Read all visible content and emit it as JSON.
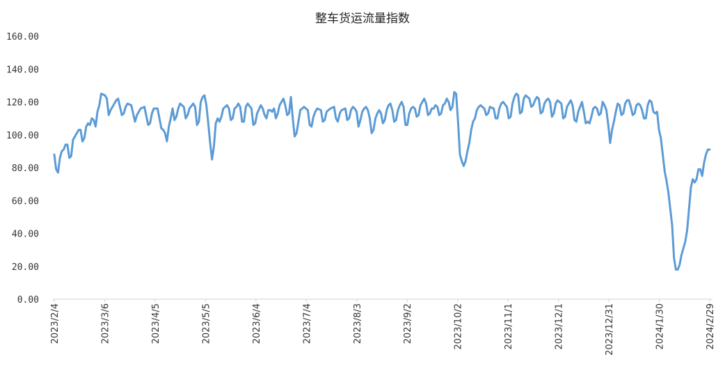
{
  "chart_data": {
    "type": "line",
    "title": "整车货运流量指数",
    "xlabel": "",
    "ylabel": "",
    "ylim": [
      0,
      160
    ],
    "yticks": [
      "0.00",
      "20.00",
      "40.00",
      "60.00",
      "80.00",
      "100.00",
      "120.00",
      "140.00",
      "160.00"
    ],
    "xticks": [
      "2023/2/4",
      "2023/3/6",
      "2023/4/5",
      "2023/5/5",
      "2023/6/4",
      "2023/7/4",
      "2023/8/3",
      "2023/9/2",
      "2023/10/2",
      "2023/11/1",
      "2023/12/1",
      "2023/12/31",
      "2024/1/30",
      "2024/2/29"
    ],
    "grid": false,
    "legend": "none",
    "series_color": "#5b9bd5",
    "series": [
      {
        "anchors": [
          [
            0,
            88
          ],
          [
            1,
            79
          ],
          [
            2,
            77
          ],
          [
            3,
            86
          ],
          [
            4,
            90
          ],
          [
            5,
            91
          ],
          [
            6,
            94
          ],
          [
            7,
            94
          ],
          [
            8,
            86
          ],
          [
            9,
            87
          ],
          [
            10,
            97
          ],
          [
            12,
            101
          ],
          [
            13,
            103
          ],
          [
            14,
            103
          ],
          [
            15,
            96
          ],
          [
            16,
            98
          ],
          [
            17,
            105
          ],
          [
            18,
            107
          ],
          [
            19,
            106
          ],
          [
            20,
            110
          ],
          [
            21,
            109
          ],
          [
            22,
            105
          ],
          [
            23,
            114
          ],
          [
            24,
            118
          ],
          [
            25,
            125
          ],
          [
            27,
            124
          ],
          [
            28,
            122
          ],
          [
            29,
            112
          ],
          [
            30,
            115
          ],
          [
            31,
            117
          ],
          [
            33,
            121
          ],
          [
            34,
            122
          ],
          [
            36,
            112
          ],
          [
            37,
            113
          ],
          [
            38,
            117
          ],
          [
            39,
            119
          ],
          [
            41,
            118
          ],
          [
            43,
            108
          ],
          [
            44,
            112
          ],
          [
            45,
            114
          ],
          [
            46,
            116
          ],
          [
            48,
            117
          ],
          [
            50,
            106
          ],
          [
            51,
            107
          ],
          [
            52,
            113
          ],
          [
            53,
            116
          ],
          [
            55,
            116
          ],
          [
            57,
            104
          ],
          [
            58,
            103
          ],
          [
            59,
            101
          ],
          [
            60,
            96
          ],
          [
            61,
            105
          ],
          [
            62,
            110
          ],
          [
            63,
            116
          ],
          [
            64,
            109
          ],
          [
            65,
            111
          ],
          [
            66,
            116
          ],
          [
            67,
            119
          ],
          [
            69,
            117
          ],
          [
            70,
            110
          ],
          [
            71,
            112
          ],
          [
            72,
            116
          ],
          [
            74,
            119
          ],
          [
            75,
            117
          ],
          [
            76,
            106
          ],
          [
            77,
            108
          ],
          [
            78,
            120
          ],
          [
            79,
            123
          ],
          [
            80,
            124
          ],
          [
            81,
            118
          ],
          [
            82,
            107
          ],
          [
            83,
            95
          ],
          [
            84,
            85
          ],
          [
            85,
            93
          ],
          [
            86,
            107
          ],
          [
            87,
            110
          ],
          [
            88,
            108
          ],
          [
            89,
            111
          ],
          [
            90,
            116
          ],
          [
            91,
            117
          ],
          [
            92,
            118
          ],
          [
            93,
            116
          ],
          [
            94,
            109
          ],
          [
            95,
            110
          ],
          [
            96,
            116
          ],
          [
            97,
            117
          ],
          [
            98,
            119
          ],
          [
            99,
            117
          ],
          [
            100,
            108
          ],
          [
            101,
            108
          ],
          [
            102,
            117
          ],
          [
            103,
            119
          ],
          [
            105,
            116
          ],
          [
            106,
            106
          ],
          [
            107,
            107
          ],
          [
            108,
            113
          ],
          [
            110,
            118
          ],
          [
            111,
            116
          ],
          [
            112,
            112
          ],
          [
            113,
            110
          ],
          [
            114,
            115
          ],
          [
            115,
            115
          ],
          [
            116,
            114
          ],
          [
            117,
            116
          ],
          [
            118,
            110
          ],
          [
            119,
            113
          ],
          [
            120,
            118
          ],
          [
            122,
            122
          ],
          [
            123,
            118
          ],
          [
            124,
            112
          ],
          [
            125,
            113
          ],
          [
            126,
            123
          ],
          [
            127,
            110
          ],
          [
            128,
            99
          ],
          [
            129,
            101
          ],
          [
            130,
            108
          ],
          [
            131,
            115
          ],
          [
            132,
            116
          ],
          [
            133,
            117
          ],
          [
            135,
            115
          ],
          [
            136,
            106
          ],
          [
            137,
            105
          ],
          [
            138,
            111
          ],
          [
            139,
            114
          ],
          [
            140,
            116
          ],
          [
            142,
            115
          ],
          [
            143,
            108
          ],
          [
            144,
            109
          ],
          [
            145,
            114
          ],
          [
            146,
            115
          ],
          [
            147,
            116
          ],
          [
            149,
            117
          ],
          [
            150,
            110
          ],
          [
            151,
            108
          ],
          [
            152,
            113
          ],
          [
            153,
            115
          ],
          [
            155,
            116
          ],
          [
            156,
            109
          ],
          [
            157,
            110
          ],
          [
            158,
            115
          ],
          [
            159,
            117
          ],
          [
            160,
            116
          ],
          [
            161,
            114
          ],
          [
            162,
            105
          ],
          [
            163,
            109
          ],
          [
            164,
            114
          ],
          [
            165,
            116
          ],
          [
            166,
            117
          ],
          [
            167,
            115
          ],
          [
            168,
            110
          ],
          [
            169,
            101
          ],
          [
            170,
            103
          ],
          [
            171,
            110
          ],
          [
            172,
            113
          ],
          [
            173,
            115
          ],
          [
            174,
            113
          ],
          [
            175,
            107
          ],
          [
            176,
            109
          ],
          [
            177,
            115
          ],
          [
            178,
            118
          ],
          [
            179,
            119
          ],
          [
            180,
            115
          ],
          [
            181,
            108
          ],
          [
            182,
            109
          ],
          [
            183,
            115
          ],
          [
            184,
            118
          ],
          [
            185,
            120
          ],
          [
            186,
            117
          ],
          [
            187,
            106
          ],
          [
            188,
            106
          ],
          [
            189,
            113
          ],
          [
            190,
            116
          ],
          [
            191,
            117
          ],
          [
            192,
            116
          ],
          [
            193,
            111
          ],
          [
            194,
            112
          ],
          [
            195,
            118
          ],
          [
            196,
            120
          ],
          [
            197,
            122
          ],
          [
            198,
            119
          ],
          [
            199,
            112
          ],
          [
            200,
            113
          ],
          [
            201,
            116
          ],
          [
            202,
            116
          ],
          [
            203,
            118
          ],
          [
            204,
            117
          ],
          [
            205,
            112
          ],
          [
            206,
            113
          ],
          [
            207,
            118
          ],
          [
            208,
            119
          ],
          [
            209,
            122
          ],
          [
            210,
            120
          ],
          [
            211,
            115
          ],
          [
            212,
            117
          ],
          [
            213,
            126
          ],
          [
            214,
            125
          ],
          [
            215,
            108
          ],
          [
            216,
            88
          ],
          [
            217,
            84
          ],
          [
            218,
            81
          ],
          [
            219,
            84
          ],
          [
            220,
            90
          ],
          [
            221,
            95
          ],
          [
            222,
            103
          ],
          [
            223,
            108
          ],
          [
            224,
            110
          ],
          [
            225,
            115
          ],
          [
            226,
            117
          ],
          [
            227,
            118
          ],
          [
            229,
            116
          ],
          [
            230,
            112
          ],
          [
            231,
            113
          ],
          [
            232,
            117
          ],
          [
            234,
            116
          ],
          [
            235,
            110
          ],
          [
            236,
            110
          ],
          [
            237,
            116
          ],
          [
            238,
            119
          ],
          [
            239,
            120
          ],
          [
            241,
            117
          ],
          [
            242,
            110
          ],
          [
            243,
            111
          ],
          [
            244,
            119
          ],
          [
            245,
            123
          ],
          [
            246,
            125
          ],
          [
            247,
            124
          ],
          [
            248,
            113
          ],
          [
            249,
            114
          ],
          [
            250,
            122
          ],
          [
            251,
            124
          ],
          [
            253,
            122
          ],
          [
            254,
            117
          ],
          [
            255,
            118
          ],
          [
            256,
            121
          ],
          [
            257,
            123
          ],
          [
            258,
            122
          ],
          [
            259,
            113
          ],
          [
            260,
            114
          ],
          [
            261,
            119
          ],
          [
            262,
            121
          ],
          [
            263,
            122
          ],
          [
            264,
            120
          ],
          [
            265,
            111
          ],
          [
            266,
            113
          ],
          [
            267,
            119
          ],
          [
            268,
            121
          ],
          [
            270,
            119
          ],
          [
            271,
            110
          ],
          [
            272,
            111
          ],
          [
            273,
            117
          ],
          [
            274,
            119
          ],
          [
            275,
            121
          ],
          [
            276,
            118
          ],
          [
            277,
            109
          ],
          [
            278,
            108
          ],
          [
            279,
            114
          ],
          [
            280,
            117
          ],
          [
            281,
            120
          ],
          [
            282,
            114
          ],
          [
            283,
            107
          ],
          [
            284,
            108
          ],
          [
            285,
            107
          ],
          [
            286,
            111
          ],
          [
            287,
            116
          ],
          [
            288,
            117
          ],
          [
            289,
            116
          ],
          [
            290,
            112
          ],
          [
            291,
            113
          ],
          [
            292,
            120
          ],
          [
            293,
            118
          ],
          [
            294,
            115
          ],
          [
            295,
            106
          ],
          [
            296,
            95
          ],
          [
            297,
            103
          ],
          [
            298,
            108
          ],
          [
            299,
            114
          ],
          [
            300,
            119
          ],
          [
            301,
            118
          ],
          [
            302,
            112
          ],
          [
            303,
            113
          ],
          [
            304,
            119
          ],
          [
            305,
            121
          ],
          [
            306,
            121
          ],
          [
            307,
            117
          ],
          [
            308,
            112
          ],
          [
            309,
            113
          ],
          [
            310,
            118
          ],
          [
            311,
            119
          ],
          [
            312,
            118
          ],
          [
            313,
            115
          ],
          [
            314,
            110
          ],
          [
            315,
            110
          ],
          [
            316,
            118
          ],
          [
            317,
            121
          ],
          [
            318,
            120
          ],
          [
            319,
            114
          ],
          [
            320,
            113
          ],
          [
            321,
            114
          ],
          [
            322,
            103
          ],
          [
            323,
            98
          ],
          [
            324,
            88
          ],
          [
            325,
            78
          ],
          [
            326,
            72
          ],
          [
            327,
            65
          ],
          [
            328,
            55
          ],
          [
            329,
            45
          ],
          [
            330,
            25
          ],
          [
            331,
            18
          ],
          [
            332,
            18
          ],
          [
            333,
            21
          ],
          [
            334,
            27
          ],
          [
            335,
            31
          ],
          [
            336,
            35
          ],
          [
            337,
            42
          ],
          [
            338,
            55
          ],
          [
            339,
            68
          ],
          [
            340,
            73
          ],
          [
            341,
            71
          ],
          [
            342,
            73
          ],
          [
            343,
            79
          ],
          [
            344,
            79
          ],
          [
            345,
            75
          ],
          [
            346,
            83
          ],
          [
            347,
            88
          ],
          [
            348,
            91
          ],
          [
            349,
            91
          ]
        ]
      }
    ]
  }
}
